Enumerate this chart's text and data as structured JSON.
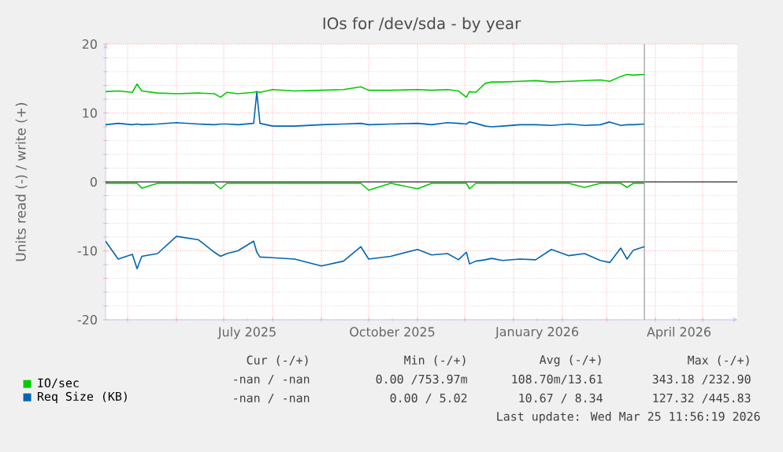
{
  "chart_data": {
    "type": "line",
    "title": "IOs for /dev/sda - by year",
    "ylabel": "Units read (-) / write (+)",
    "x": [
      "2025-04-17",
      "2025-04-25",
      "2025-05-04",
      "2025-05-07",
      "2025-05-10",
      "2025-05-20",
      "2025-06-01",
      "2025-06-15",
      "2025-06-25",
      "2025-06-29",
      "2025-07-03",
      "2025-07-10",
      "2025-07-20",
      "2025-07-22",
      "2025-07-24",
      "2025-08-01",
      "2025-08-15",
      "2025-09-01",
      "2025-09-15",
      "2025-09-26",
      "2025-10-01",
      "2025-10-15",
      "2025-11-01",
      "2025-11-10",
      "2025-11-20",
      "2025-11-27",
      "2025-12-02",
      "2025-12-04",
      "2025-12-08",
      "2025-12-14",
      "2025-12-18",
      "2025-12-25",
      "2026-01-05",
      "2026-01-15",
      "2026-01-25",
      "2026-02-05",
      "2026-02-15",
      "2026-02-25",
      "2026-03-03",
      "2026-03-10",
      "2026-03-14",
      "2026-03-18",
      "2026-03-25"
    ],
    "series": [
      {
        "name": "IO/sec",
        "color": "#00cc00",
        "values": [
          13.1,
          13.2,
          13.0,
          14.2,
          13.2,
          12.9,
          12.8,
          12.9,
          12.8,
          12.3,
          13.0,
          12.8,
          13.0,
          13.1,
          13.0,
          13.4,
          13.2,
          13.3,
          13.4,
          13.8,
          13.3,
          13.3,
          13.4,
          13.3,
          13.4,
          13.2,
          12.3,
          13.1,
          13.0,
          14.3,
          14.5,
          14.5,
          14.6,
          14.7,
          14.5,
          14.6,
          14.7,
          14.8,
          14.6,
          15.3,
          15.6,
          15.5,
          15.6
        ]
      },
      {
        "color": "#00cc00",
        "values": [
          -0.2,
          -0.2,
          -0.2,
          -0.2,
          -0.9,
          -0.2,
          -0.2,
          -0.2,
          -0.2,
          -1.0,
          -0.2,
          -0.2,
          -0.2,
          -0.2,
          -0.2,
          -0.2,
          -0.2,
          -0.2,
          -0.2,
          -0.2,
          -1.2,
          -0.2,
          -1.0,
          -0.2,
          -0.2,
          -0.2,
          -0.2,
          -1.0,
          -0.2,
          -0.2,
          -0.2,
          -0.2,
          -0.2,
          -0.2,
          -0.2,
          -0.2,
          -0.8,
          -0.2,
          -0.2,
          -0.2,
          -0.8,
          -0.2,
          -0.2
        ]
      },
      {
        "name": "Req Size (KB)",
        "color": "#0066b3",
        "values": [
          8.3,
          8.5,
          8.3,
          8.4,
          8.3,
          8.4,
          8.6,
          8.4,
          8.3,
          8.4,
          8.4,
          8.3,
          8.5,
          13.0,
          8.5,
          8.1,
          8.1,
          8.3,
          8.4,
          8.5,
          8.3,
          8.4,
          8.5,
          8.3,
          8.6,
          8.5,
          8.4,
          8.7,
          8.5,
          8.1,
          8.0,
          8.1,
          8.3,
          8.3,
          8.2,
          8.4,
          8.2,
          8.3,
          8.7,
          8.2,
          8.3,
          8.3,
          8.4
        ]
      },
      {
        "color": "#0066b3",
        "values": [
          -8.6,
          -11.2,
          -10.5,
          -12.6,
          -10.8,
          -10.4,
          -7.9,
          -8.4,
          -10.2,
          -10.8,
          -10.4,
          -10.0,
          -8.6,
          -10.2,
          -10.9,
          -11.0,
          -11.2,
          -12.2,
          -11.5,
          -9.4,
          -11.2,
          -10.8,
          -9.8,
          -10.6,
          -10.4,
          -11.3,
          -10.2,
          -11.9,
          -11.5,
          -11.3,
          -11.1,
          -11.4,
          -11.2,
          -11.3,
          -9.8,
          -10.7,
          -10.4,
          -11.4,
          -11.7,
          -9.6,
          -11.2,
          -9.9,
          -9.4
        ]
      }
    ],
    "xlim": [
      "2025-04-17",
      "2026-05-23"
    ],
    "xticks": [
      {
        "value": "2025-05-01",
        "label": null
      },
      {
        "value": "2025-06-01",
        "label": null
      },
      {
        "value": "2025-07-01",
        "label": null
      },
      {
        "value": "2025-08-01",
        "label": null
      },
      {
        "value": "2025-09-01",
        "label": null
      },
      {
        "value": "2025-10-01",
        "label": null
      },
      {
        "value": "2025-11-01",
        "label": null
      },
      {
        "value": "2025-12-01",
        "label": null
      },
      {
        "value": "2026-01-01",
        "label": null
      },
      {
        "value": "2026-02-01",
        "label": null
      },
      {
        "value": "2026-03-01",
        "label": null
      },
      {
        "value": "2026-04-01",
        "label": null
      },
      {
        "value": "2026-05-01",
        "label": null
      },
      {
        "value": "2025-07-16",
        "label": "July 2025"
      },
      {
        "value": "2025-10-16",
        "label": "October 2025"
      },
      {
        "value": "2026-01-16",
        "label": "January 2026"
      },
      {
        "value": "2026-04-16",
        "label": "April 2026"
      }
    ],
    "ylim": [
      -20,
      20
    ],
    "yticks": [
      -20,
      -10,
      0,
      10,
      20
    ],
    "ref_lines": [
      {
        "axis": "y",
        "value": 0,
        "color": "#000000"
      },
      {
        "axis": "x",
        "value": "2026-03-25",
        "color": "#999999"
      }
    ],
    "grid": true,
    "legend": "bottom left",
    "marker": "none",
    "line_style": "solid",
    "annotations": [
      "Cur (-/+)",
      "Min (-/+)",
      "Avg (-/+)",
      "Max (-/+)",
      "-nan / -nan",
      "0.00 /753.97m",
      "108.70m/13.61",
      "343.18 /232.90",
      "-nan / -nan",
      "0.00 / 5.02",
      "10.67 / 8.34",
      "127.32 /445.83",
      "Last update: Wed Mar 25 11:56:19 2026"
    ]
  }
}
